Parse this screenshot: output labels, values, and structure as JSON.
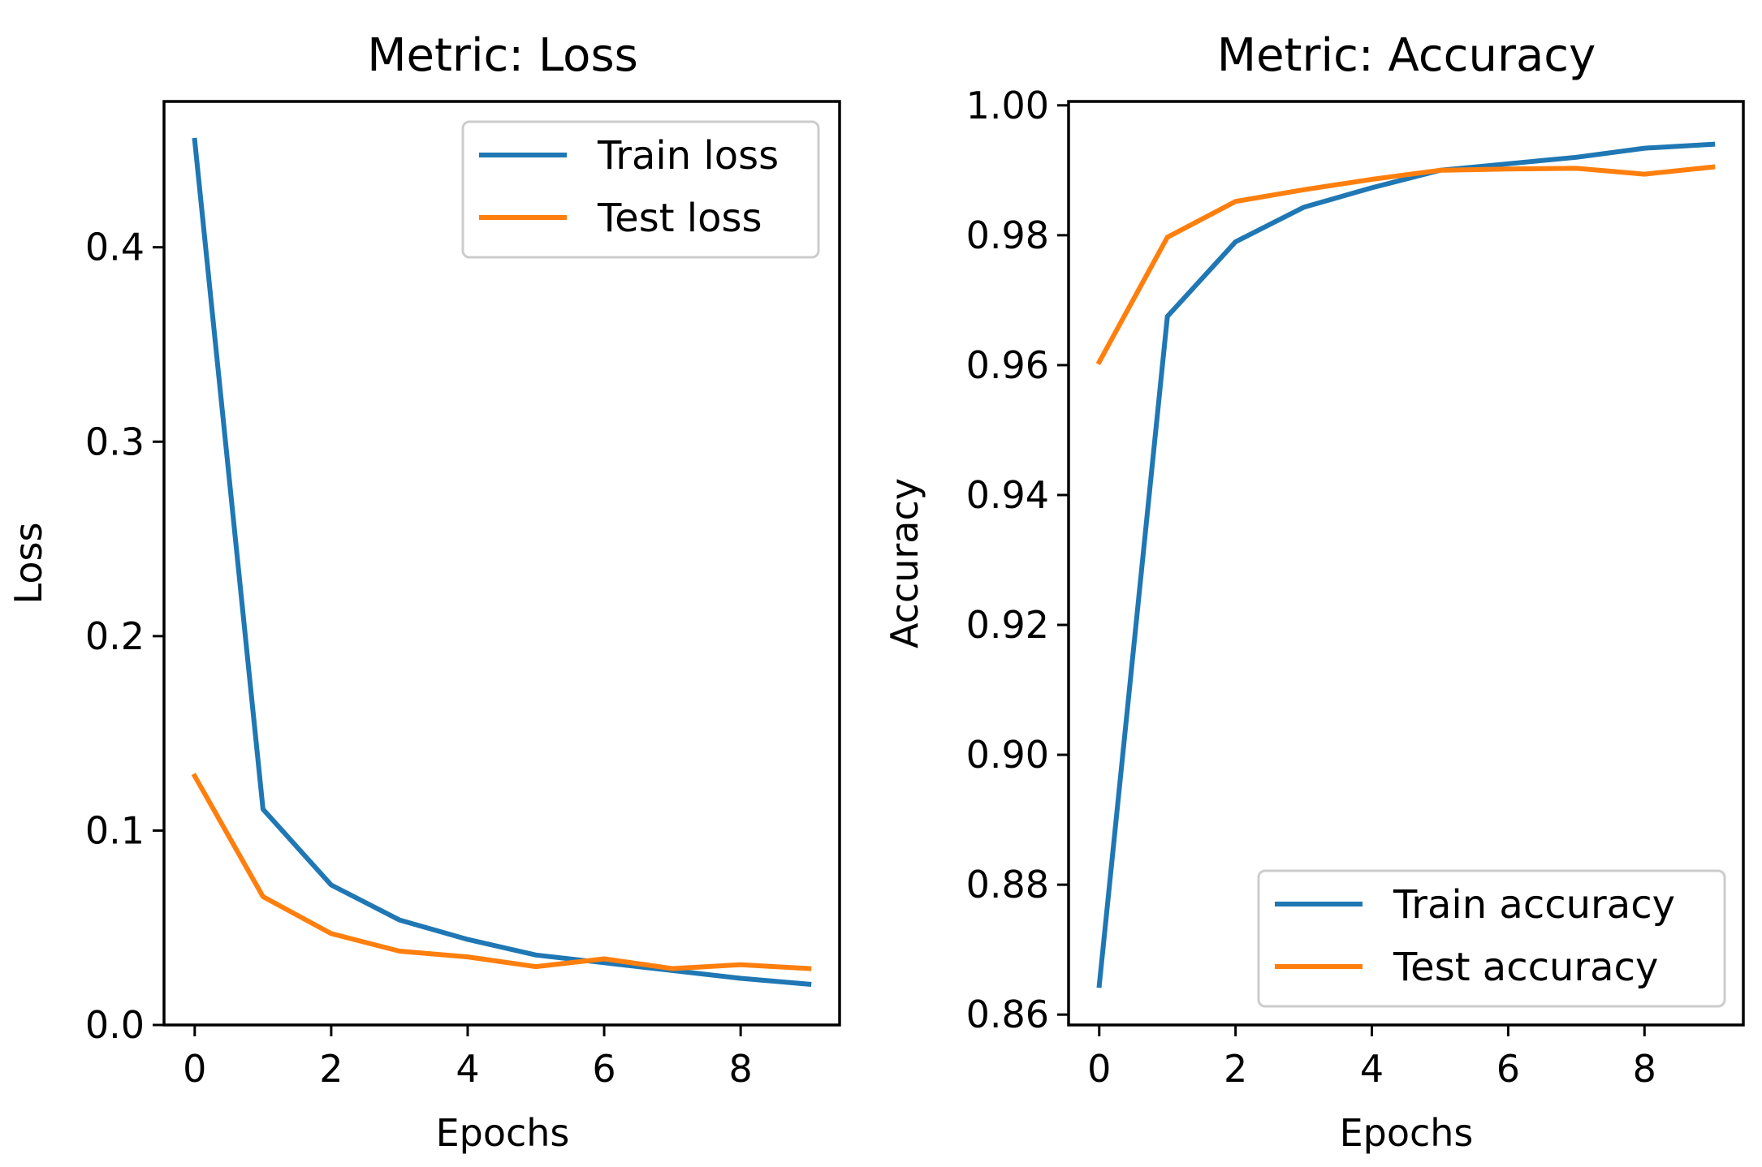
{
  "chart_data": [
    {
      "type": "line",
      "title": "Metric: Loss",
      "xlabel": "Epochs",
      "ylabel": "Loss",
      "xlim": [
        -0.45,
        9.45
      ],
      "ylim": [
        0.0,
        0.475
      ],
      "xticks": [
        0,
        2,
        4,
        6,
        8
      ],
      "xtick_labels": [
        "0",
        "2",
        "4",
        "6",
        "8"
      ],
      "yticks": [
        0.0,
        0.1,
        0.2,
        0.3,
        0.4
      ],
      "ytick_labels": [
        "0.0",
        "0.1",
        "0.2",
        "0.3",
        "0.4"
      ],
      "legend_position": "upper-right",
      "grid": false,
      "x": [
        0,
        1,
        2,
        3,
        4,
        5,
        6,
        7,
        8,
        9
      ],
      "series": [
        {
          "name": "Train loss",
          "color": "#1f77b4",
          "values": [
            0.455,
            0.111,
            0.072,
            0.054,
            0.044,
            0.036,
            0.032,
            0.028,
            0.024,
            0.021
          ]
        },
        {
          "name": "Test loss",
          "color": "#ff7f0e",
          "values": [
            0.128,
            0.066,
            0.047,
            0.038,
            0.035,
            0.03,
            0.034,
            0.029,
            0.031,
            0.029
          ]
        }
      ]
    },
    {
      "type": "line",
      "title": "Metric: Accuracy",
      "xlabel": "Epochs",
      "ylabel": "Accuracy",
      "xlim": [
        -0.45,
        9.45
      ],
      "ylim": [
        0.8584,
        1.0006
      ],
      "xticks": [
        0,
        2,
        4,
        6,
        8
      ],
      "xtick_labels": [
        "0",
        "2",
        "4",
        "6",
        "8"
      ],
      "yticks": [
        0.86,
        0.88,
        0.9,
        0.92,
        0.94,
        0.96,
        0.98,
        1.0
      ],
      "ytick_labels": [
        "0.86",
        "0.88",
        "0.90",
        "0.92",
        "0.94",
        "0.96",
        "0.98",
        "1.00"
      ],
      "legend_position": "lower-right",
      "grid": false,
      "x": [
        0,
        1,
        2,
        3,
        4,
        5,
        6,
        7,
        8,
        9
      ],
      "series": [
        {
          "name": "Train accuracy",
          "color": "#1f77b4",
          "values": [
            0.8645,
            0.9675,
            0.979,
            0.9843,
            0.9873,
            0.99,
            0.991,
            0.992,
            0.9934,
            0.994
          ]
        },
        {
          "name": "Test accuracy",
          "color": "#ff7f0e",
          "values": [
            0.9605,
            0.9797,
            0.9852,
            0.987,
            0.9886,
            0.99,
            0.9902,
            0.9903,
            0.9894,
            0.9905
          ]
        }
      ]
    }
  ]
}
